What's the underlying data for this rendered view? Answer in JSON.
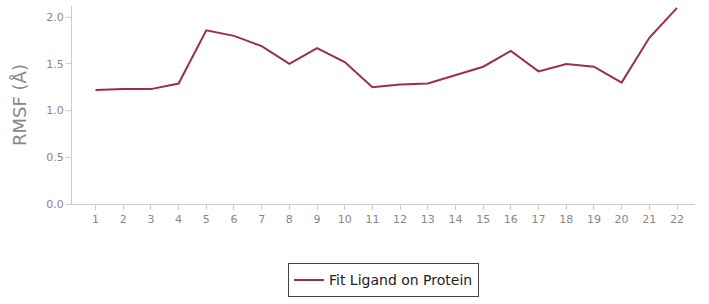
{
  "chart_data": {
    "type": "line",
    "x": [
      1,
      2,
      3,
      4,
      5,
      6,
      7,
      8,
      9,
      10,
      11,
      12,
      13,
      14,
      15,
      16,
      17,
      18,
      19,
      20,
      21,
      22
    ],
    "series": [
      {
        "name": "Fit Ligand on Protein",
        "color": "#9b2d55",
        "values": [
          1.22,
          1.23,
          1.23,
          1.29,
          1.86,
          1.8,
          1.69,
          1.5,
          1.67,
          1.52,
          1.25,
          1.28,
          1.29,
          1.38,
          1.47,
          1.64,
          1.42,
          1.5,
          1.47,
          1.3,
          1.78,
          2.1
        ]
      }
    ],
    "y_label": "RMSF (Å)",
    "xlim": [
      0.15,
      22.65
    ],
    "xticks": [
      1,
      2,
      3,
      4,
      5,
      6,
      7,
      8,
      9,
      10,
      11,
      12,
      13,
      14,
      15,
      16,
      17,
      18,
      19,
      20,
      21,
      22
    ],
    "ylim": [
      0,
      2.12
    ],
    "yticks": [
      {
        "value": 0,
        "label": "0.0"
      },
      {
        "value": 0.5,
        "label": "0.5"
      },
      {
        "value": 1,
        "label": "1.0"
      },
      {
        "value": 1.5,
        "label": "1.5"
      },
      {
        "value": 2,
        "label": "2.0"
      }
    ],
    "grid": false,
    "legend": "bottom"
  }
}
